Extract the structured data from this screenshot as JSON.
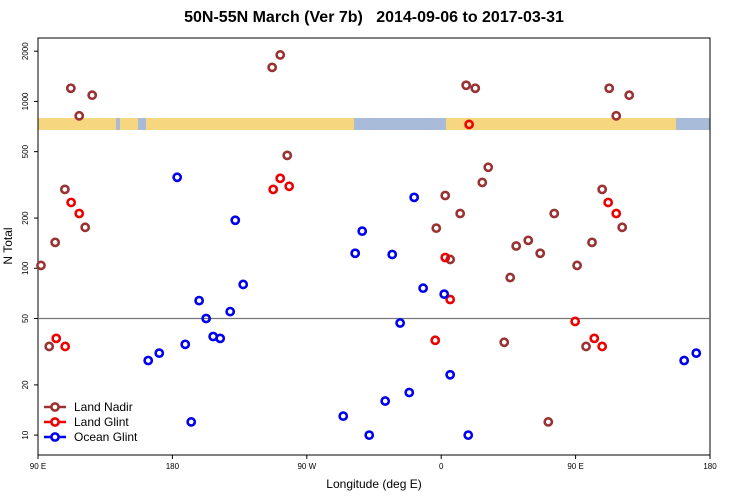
{
  "chart_data": {
    "type": "scatter",
    "title": "50N-55N March (Ver 7b)   2014-09-06 to 2017-03-31",
    "x_label": "Longitude (deg E)",
    "y_label": "N Total",
    "xlim": [
      -270,
      180
    ],
    "xticks": [
      {
        "value": -270,
        "label": "90 E"
      },
      {
        "value": -180,
        "label": "180"
      },
      {
        "value": -90,
        "label": "90 W"
      },
      0,
      {
        "value": 90,
        "label": "90 E"
      },
      180
    ],
    "ylim": [
      7.6,
      2400
    ],
    "ylog": true,
    "yticks": [
      10,
      20,
      50,
      100,
      200,
      500,
      1000,
      2000
    ],
    "reference_line": 50,
    "legend": "bottom-left",
    "series": [
      {
        "name": "Land Nadir",
        "color": "#993333",
        "x": [
          -268,
          -262.5,
          -258.5,
          -252,
          -248,
          -242.4,
          -238.4,
          -233.7,
          -113.2,
          -107.8,
          -103.1,
          -3.3,
          2.7,
          6,
          12.7,
          16.7,
          22.8,
          27.5,
          31.5,
          42.2,
          46.2,
          50.2,
          58.3,
          66.3,
          71.7,
          75.7,
          91,
          97,
          101,
          107.8,
          112.5,
          117.2,
          121.2,
          125.9
        ],
        "values": [
          104,
          34,
          143,
          297,
          1200,
          820,
          176,
          1090,
          1600,
          1900,
          475,
          174,
          273,
          113,
          213,
          1250,
          1200,
          327,
          403,
          36,
          88,
          136,
          147,
          123,
          12,
          213,
          104,
          34,
          143,
          297,
          1200,
          820,
          176,
          1090
        ]
      },
      {
        "name": "Land Glint",
        "color": "#ee0000",
        "x": [
          -257.8,
          -251.8,
          -247.8,
          -242.4,
          -112.5,
          -107.8,
          -101.8,
          18.7,
          -4,
          2.7,
          6,
          89.7,
          102.5,
          107.8,
          111.8,
          117.2
        ],
        "values": [
          38,
          34,
          248,
          213,
          297,
          346,
          310,
          728,
          37,
          116,
          65,
          48,
          38,
          34,
          248,
          213
        ]
      },
      {
        "name": "Ocean Glint",
        "color": "#0000ee",
        "x": [
          -196.2,
          -188.8,
          -176.8,
          -171.4,
          -167.4,
          -162.1,
          -157.4,
          -152.7,
          -148,
          -141.3,
          -137.9,
          -132.6,
          -65.6,
          -57.6,
          -52.9,
          -48.2,
          -37.5,
          -32.8,
          -27.5,
          -21.4,
          -18.1,
          -12.1,
          2,
          6,
          18.1,
          162.7,
          170.8
        ],
        "values": [
          28,
          31,
          351,
          35,
          12,
          64,
          50,
          39,
          38,
          55,
          194,
          80,
          13,
          123,
          167,
          10,
          16,
          121,
          47,
          18,
          266,
          76,
          70,
          23,
          10,
          28,
          31
        ]
      }
    ]
  }
}
